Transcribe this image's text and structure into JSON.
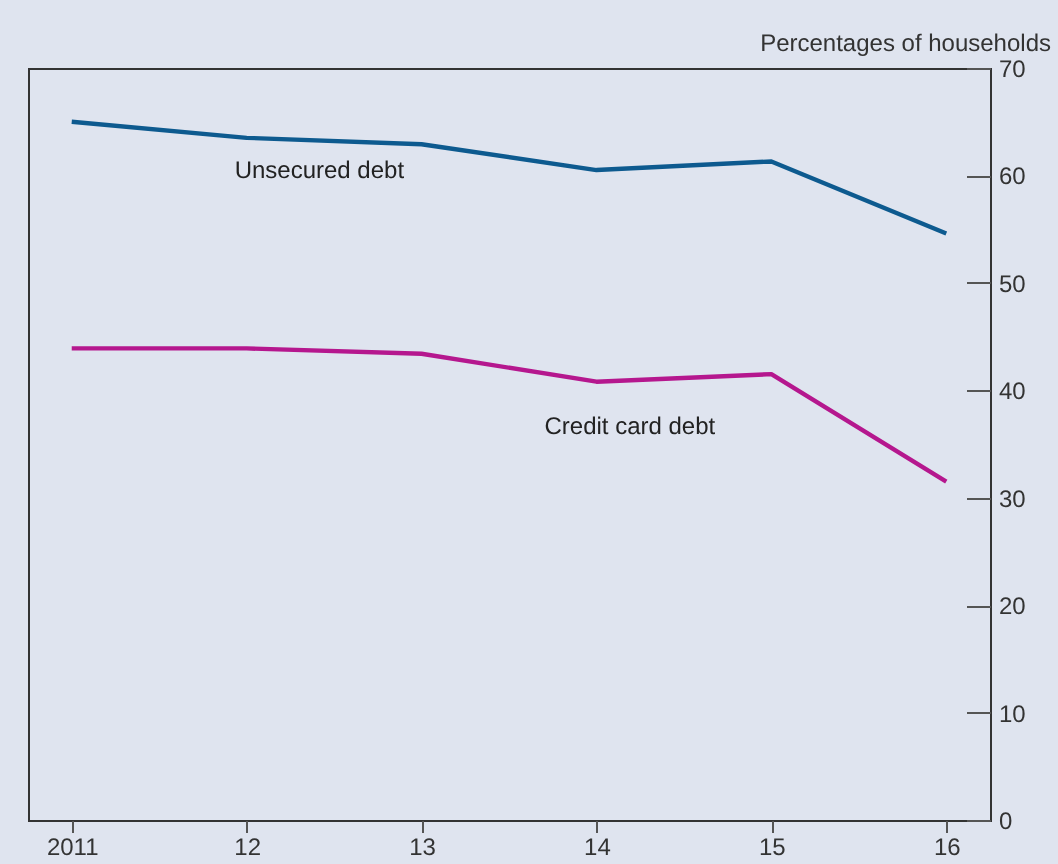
{
  "chart_data": {
    "type": "line",
    "ylabel": "Percentages of households",
    "categories": [
      "2011",
      "12",
      "13",
      "14",
      "15",
      "16"
    ],
    "series": [
      {
        "name": "Unsecured debt",
        "color": "#0d5a8f",
        "values": [
          65.0,
          63.5,
          62.9,
          60.5,
          61.3,
          54.6
        ]
      },
      {
        "name": "Credit card debt",
        "color": "#b5178e",
        "values": [
          43.9,
          43.9,
          43.4,
          40.8,
          41.5,
          31.5
        ]
      }
    ],
    "ylim": [
      0,
      70
    ],
    "yticks": [
      0,
      10,
      20,
      30,
      40,
      50,
      60,
      70
    ],
    "grid": false,
    "legend": false,
    "marker": "none",
    "line_style": "solid"
  }
}
